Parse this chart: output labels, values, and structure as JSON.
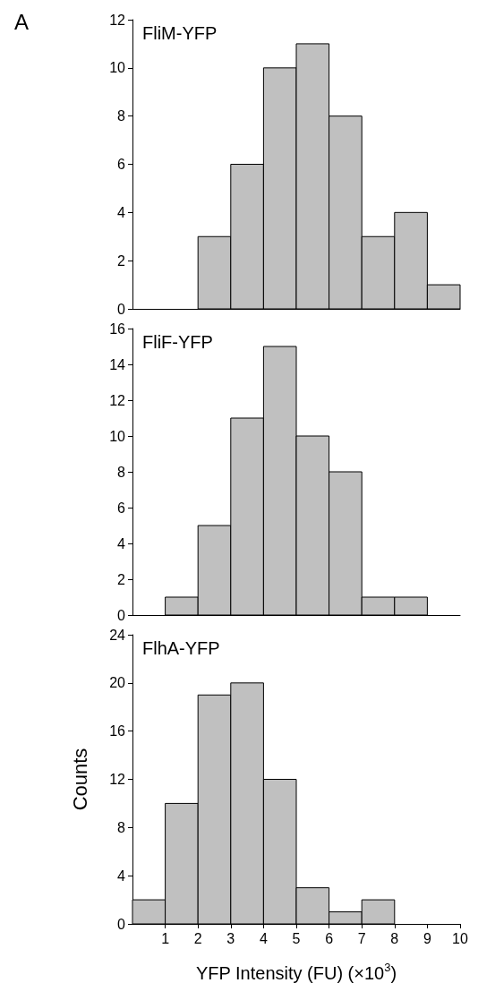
{
  "chart_data": [
    {
      "type": "histogram",
      "title": "FliM-YFP",
      "annotations": [
        "A"
      ],
      "color": "#c0c0c0",
      "bins": [
        2,
        3,
        4,
        5,
        6,
        7,
        8,
        9,
        10
      ],
      "values": [
        3,
        6,
        10,
        11,
        8,
        3,
        4,
        1
      ],
      "xlim": [
        0,
        10
      ],
      "xticks": [
        1,
        2,
        3,
        4,
        5,
        6,
        7,
        8,
        9,
        10
      ],
      "ylim": [
        0,
        12
      ],
      "yticks": [
        0,
        2,
        4,
        6,
        8,
        10,
        12
      ],
      "tick_labels": "y"
    },
    {
      "type": "histogram",
      "title": "FliF-YFP",
      "color": "#c0c0c0",
      "bins": [
        1,
        2,
        3,
        4,
        5,
        6,
        7,
        8,
        9
      ],
      "values": [
        1,
        5,
        11,
        15,
        10,
        8,
        1,
        1
      ],
      "xlim": [
        0,
        10
      ],
      "xticks": [
        1,
        2,
        3,
        4,
        5,
        6,
        7,
        8,
        9,
        10
      ],
      "ylim": [
        0,
        16
      ],
      "yticks": [
        0,
        2,
        4,
        6,
        8,
        10,
        12,
        14,
        16
      ],
      "tick_labels": "y"
    },
    {
      "type": "histogram",
      "title": "FlhA-YFP",
      "color": "#c0c0c0",
      "xlabel": "YFP Intensity (FU) (×10$^{3}$)",
      "ylabel": "Counts",
      "bins": [
        0,
        1,
        2,
        3,
        4,
        5,
        6,
        7,
        8
      ],
      "values": [
        2,
        10,
        19,
        20,
        12,
        3,
        1,
        2
      ],
      "xlim": [
        0,
        10
      ],
      "xticks": [
        1,
        2,
        3,
        4,
        5,
        6,
        7,
        8,
        9,
        10
      ],
      "ylim": [
        0,
        24
      ],
      "yticks": [
        0,
        4,
        8,
        12,
        16,
        20,
        24
      ]
    }
  ]
}
